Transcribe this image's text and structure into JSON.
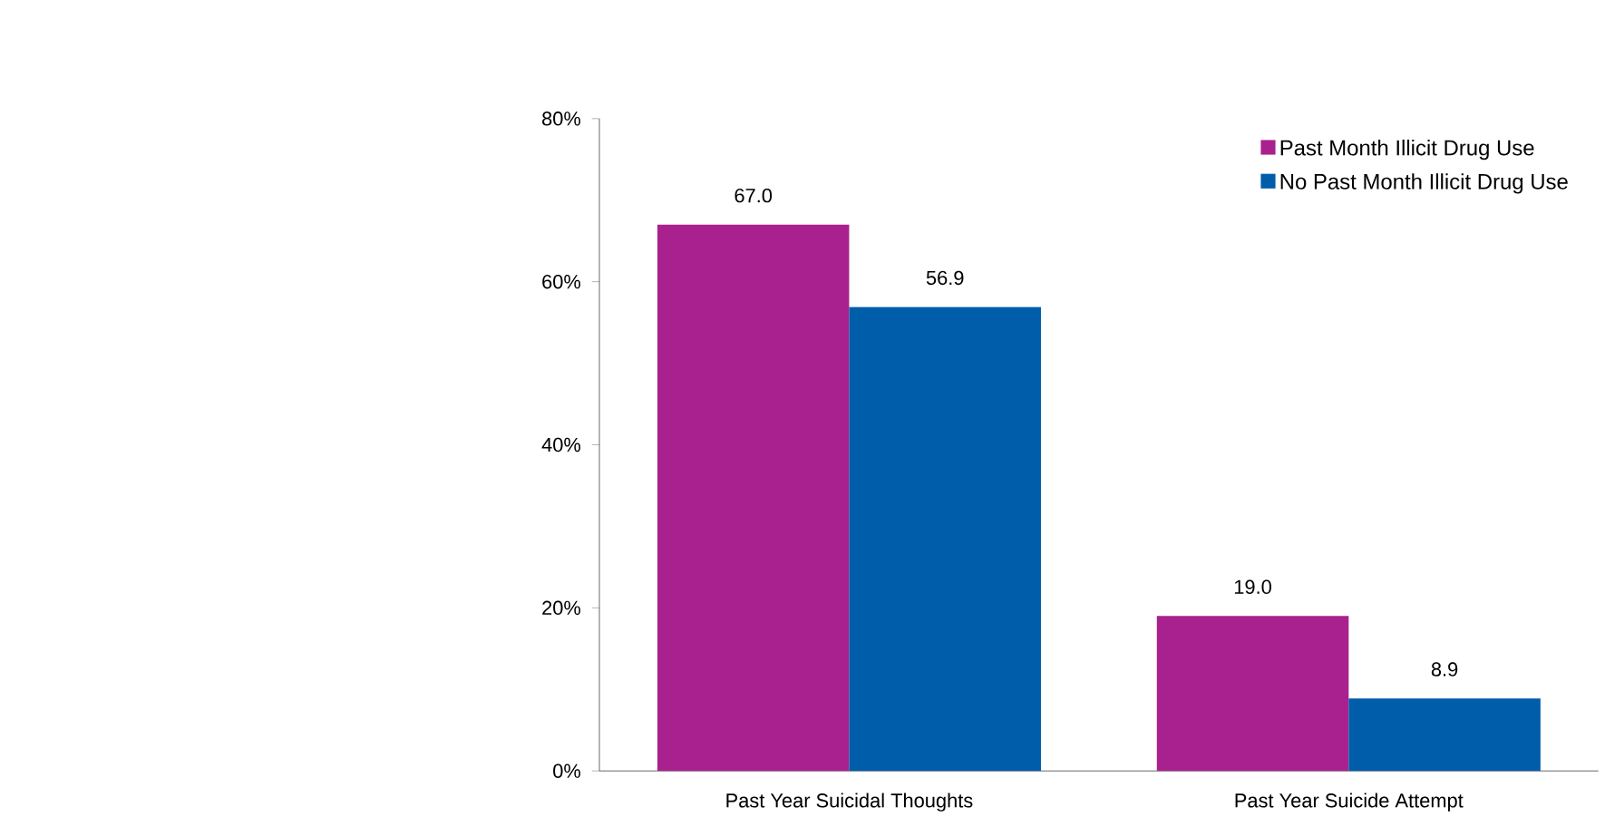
{
  "chart_data": {
    "type": "bar",
    "categories": [
      "Past Year Suicidal Thoughts",
      "Past Year Suicide Attempt"
    ],
    "series": [
      {
        "name": "Past Month Illicit Drug Use",
        "color": "#a8218e",
        "values": [
          67.0,
          19.0
        ],
        "value_labels": [
          "67.0",
          "19.0"
        ]
      },
      {
        "name": "No Past Month Illicit Drug Use",
        "color": "#005daa",
        "values": [
          56.9,
          8.9
        ],
        "value_labels": [
          "56.9",
          "8.9"
        ]
      }
    ],
    "ylim": [
      0,
      80
    ],
    "yticks": [
      {
        "value": 0,
        "label": "0%"
      },
      {
        "value": 20,
        "label": "20%"
      },
      {
        "value": 40,
        "label": "40%"
      },
      {
        "value": 60,
        "label": "60%"
      },
      {
        "value": 80,
        "label": "80%"
      }
    ],
    "grid": false,
    "legend": "top right"
  }
}
